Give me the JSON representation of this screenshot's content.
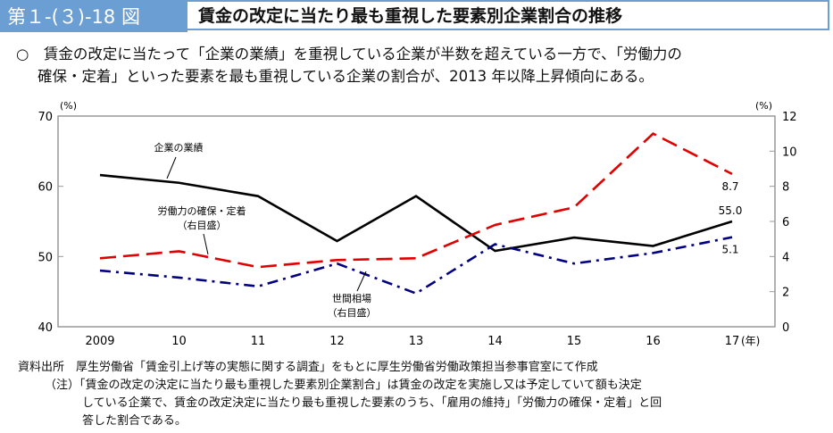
{
  "header": {
    "figure_no": "第１-(３)-18 図",
    "title": "賃金の改定に当たり最も重視した要素別企業割合の推移"
  },
  "summary": {
    "line1": "○　賃金の改定に当たって「企業の業績」を重視している企業が半数を超えている一方で、「労働力の",
    "line2": "確保・定着」といった要素を最も重視している企業の割合が、2013 年以降上昇傾向にある。"
  },
  "chart_data": {
    "type": "line",
    "categories": [
      "2009",
      "10",
      "11",
      "12",
      "13",
      "14",
      "15",
      "16",
      "17"
    ],
    "x_unit": "(年)",
    "y_left": {
      "unit": "(%)",
      "range": [
        40,
        70
      ],
      "ticks": [
        40,
        50,
        60,
        70
      ]
    },
    "y_right": {
      "unit": "(%)",
      "range": [
        0,
        12
      ],
      "ticks": [
        0,
        2,
        4,
        6,
        8,
        10,
        12
      ]
    },
    "grid": false,
    "series": [
      {
        "name": "企業の業績",
        "axis": "left",
        "color": "#000000",
        "style": "solid",
        "values": [
          61.6,
          60.5,
          58.6,
          52.2,
          58.6,
          50.8,
          52.7,
          51.5,
          55.0
        ],
        "end_label": "55.0"
      },
      {
        "name": "労働力の確保・定着",
        "sub": "（右目盛）",
        "axis": "right",
        "color": "#e00000",
        "style": "dashed",
        "values": [
          3.9,
          4.3,
          3.4,
          3.8,
          3.9,
          5.8,
          6.8,
          11.0,
          8.7
        ],
        "end_label": "8.7"
      },
      {
        "name": "世間相場",
        "sub": "（右目盛）",
        "axis": "right",
        "color": "#000080",
        "style": "dashdot",
        "values": [
          3.2,
          2.8,
          2.3,
          3.6,
          1.9,
          4.7,
          3.6,
          4.2,
          5.1
        ],
        "end_label": "5.1"
      }
    ]
  },
  "notes": {
    "source_label": "資料出所",
    "source": "厚生労働省「賃金引上げ等の実態に関する調査」をもとに厚生労働省労働政策担当参事官室にて作成",
    "note_label": "（注）",
    "note1": "「賃金の改定の決定に当たり最も重視した要素別企業割合」は賃金の改定を実施し又は予定していて額も決定",
    "note2": "している企業で、賃金の改定決定に当たり最も重視した要素のうち、「雇用の維持」「労働力の確保・定着」と回",
    "note3": "答した割合である。"
  }
}
